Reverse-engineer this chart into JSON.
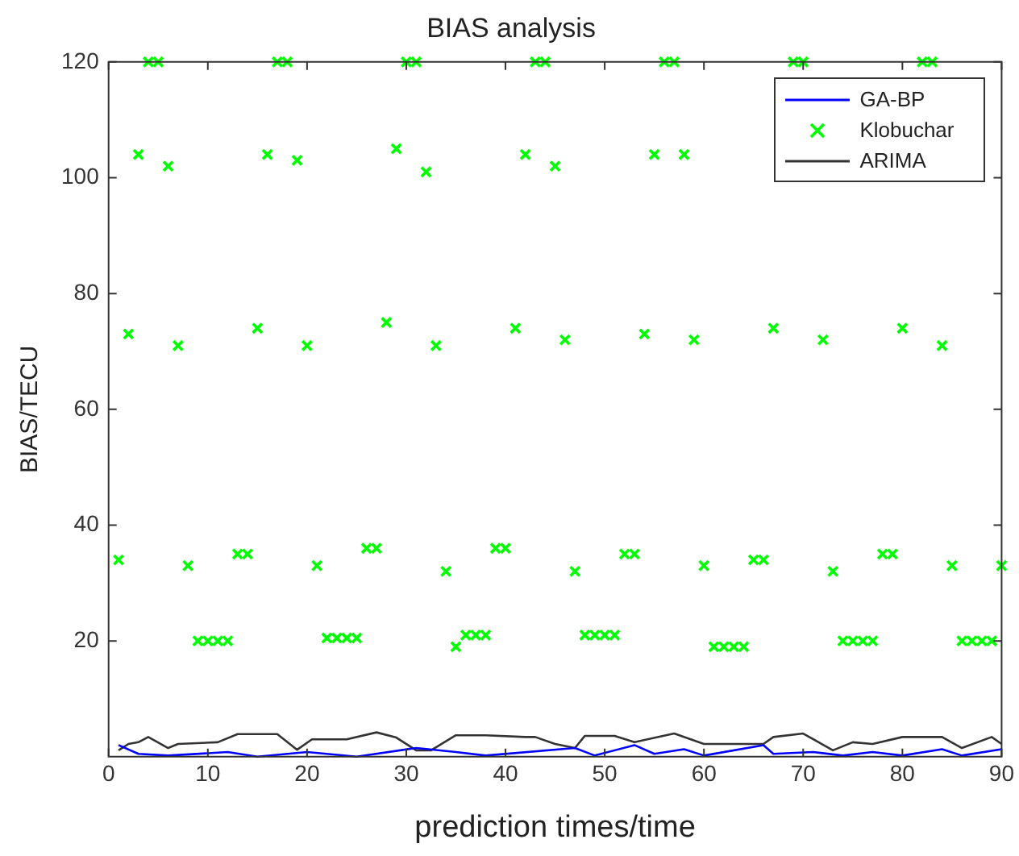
{
  "chart_data": {
    "type": "line",
    "title": "BIAS analysis",
    "xlabel": "prediction times/time",
    "ylabel": "BIAS/TECU",
    "xlim": [
      0,
      90
    ],
    "xticks": [
      0,
      10,
      20,
      30,
      40,
      50,
      60,
      70,
      80,
      90
    ],
    "ylim": [
      0,
      120
    ],
    "yticks": [
      20,
      40,
      60,
      80,
      100,
      120
    ],
    "grid": false,
    "legend": "top right",
    "series": [
      {
        "name": "GA-BP",
        "color": "#0000ff",
        "marker": "none",
        "x": [
          1,
          3,
          6,
          12,
          15,
          20,
          25,
          31,
          35,
          38,
          47,
          49,
          53,
          55,
          58,
          60,
          66,
          67,
          71,
          74,
          77,
          80,
          84,
          86,
          90
        ],
        "values": [
          2,
          0.5,
          0.2,
          0.8,
          0,
          0.8,
          0,
          1.5,
          0.8,
          0.2,
          1.5,
          0.2,
          2,
          0.5,
          1.3,
          0.2,
          2,
          0.5,
          0.8,
          0.2,
          0.8,
          0.2,
          1.3,
          0.2,
          1.3
        ]
      },
      {
        "name": "Klobuchar",
        "type": "scatter",
        "color": "#00ff00",
        "marker": "cross",
        "x": [
          1,
          2,
          3,
          4,
          5,
          6,
          7,
          8,
          9,
          10,
          11,
          12,
          13,
          14,
          15,
          16,
          17,
          18,
          19,
          20,
          21,
          22,
          23,
          24,
          25,
          26,
          27,
          28,
          29,
          30,
          31,
          32,
          33,
          34,
          35,
          36,
          37,
          38,
          39,
          40,
          41,
          42,
          43,
          44,
          45,
          46,
          47,
          48,
          49,
          50,
          51,
          52,
          53,
          54,
          55,
          56,
          57,
          58,
          59,
          60,
          61,
          62,
          63,
          64,
          65,
          66,
          67,
          69,
          70,
          72,
          73,
          74,
          75,
          76,
          77,
          78,
          79,
          80,
          82,
          83,
          84,
          85,
          86,
          87,
          88,
          89,
          90
        ],
        "values": [
          34,
          73,
          104,
          120,
          120,
          102,
          71,
          33,
          20,
          20,
          20,
          20,
          35,
          35,
          74,
          104,
          120,
          120,
          103,
          71,
          33,
          20.5,
          20.5,
          20.5,
          20.5,
          36,
          36,
          75,
          105,
          120,
          120,
          101,
          71,
          32,
          19,
          21,
          21,
          21,
          36,
          36,
          74,
          104,
          120,
          120,
          102,
          72,
          32,
          21,
          21,
          21,
          21,
          35,
          35,
          73,
          104,
          120,
          120,
          104,
          72,
          33,
          19,
          19,
          19,
          19,
          34,
          34,
          74,
          120,
          120,
          72,
          32,
          20,
          20,
          20,
          20,
          35,
          35,
          74,
          120,
          120,
          71,
          33,
          20,
          20,
          20,
          20,
          33
        ]
      },
      {
        "name": "ARIMA",
        "color": "#333333",
        "marker": "none",
        "x": [
          1,
          2,
          3,
          4,
          6,
          7,
          11,
          13,
          17,
          19,
          20.5,
          24,
          27,
          29,
          31,
          32.5,
          35,
          38,
          42,
          43,
          45,
          47,
          48,
          51,
          53,
          57,
          60,
          66,
          67,
          70,
          73,
          75,
          77,
          80,
          84,
          86,
          89,
          90
        ],
        "values": [
          1.1,
          2.2,
          2.5,
          3.4,
          1.5,
          2.2,
          2.5,
          3.9,
          3.9,
          1.2,
          3,
          3,
          4.2,
          3.3,
          1.1,
          1.1,
          3.7,
          3.7,
          3.4,
          3.4,
          2.2,
          1.5,
          3.6,
          3.6,
          2.5,
          4,
          2.2,
          2.2,
          3.4,
          4,
          1.1,
          2.5,
          2.2,
          3.4,
          3.4,
          1.5,
          3.4,
          2.2
        ]
      }
    ]
  }
}
